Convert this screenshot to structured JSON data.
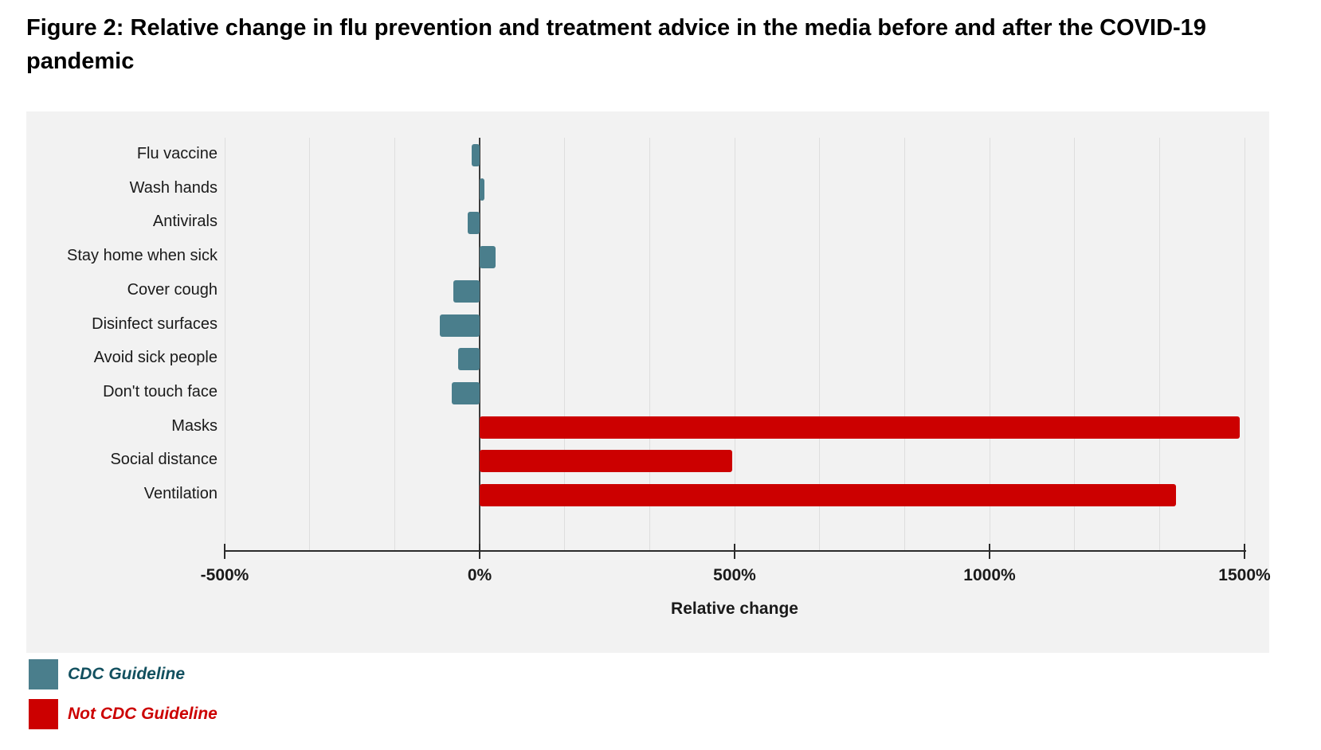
{
  "title": "Figure 2: Relative change in flu prevention and treatment advice in the media before and after the COVID-19 pandemic",
  "colors": {
    "panel_background": "#f2f2f2",
    "gridline": "#dedede",
    "axis": "#2b2b2b",
    "zero_line": "#3d3d3d",
    "cdc_bar": "#4a7e8c",
    "not_cdc_bar": "#cc0000",
    "cdc_legend_text": "#12505f",
    "not_cdc_legend_text": "#cc0000"
  },
  "chart_data": {
    "type": "bar",
    "orientation": "horizontal",
    "title": "Figure 2: Relative change in flu prevention and treatment advice in the media before and after the COVID-19 pandemic",
    "xlabel": "Relative change",
    "ylabel": "",
    "xlim": [
      -500,
      1500
    ],
    "grid": true,
    "gridline_interval_pct": 166.67,
    "x_ticks": [
      {
        "label": "-500%",
        "value": -500
      },
      {
        "label": "0%",
        "value": 0
      },
      {
        "label": "500%",
        "value": 500
      },
      {
        "label": "1000%",
        "value": 1000
      },
      {
        "label": "1500%",
        "value": 1500
      }
    ],
    "categories": [
      "Flu vaccine",
      "Wash hands",
      "Antivirals",
      "Stay home when sick",
      "Cover cough",
      "Disinfect surfaces",
      "Avoid sick people",
      "Don't touch face",
      "Masks",
      "Social distance",
      "Ventilation"
    ],
    "values": [
      -15,
      9,
      -23,
      32,
      -52,
      -78,
      -42,
      -55,
      1490,
      495,
      1365
    ],
    "groups": [
      "CDC Guideline",
      "CDC Guideline",
      "CDC Guideline",
      "CDC Guideline",
      "CDC Guideline",
      "CDC Guideline",
      "CDC Guideline",
      "CDC Guideline",
      "Not CDC Guideline",
      "Not CDC Guideline",
      "Not CDC Guideline"
    ],
    "legend": [
      {
        "label": "CDC Guideline",
        "swatch_color": "#4a7e8c",
        "text_color": "#12505f"
      },
      {
        "label": "Not CDC Guideline",
        "swatch_color": "#cc0000",
        "text_color": "#cc0000"
      }
    ],
    "legend_position": "bottom-left"
  }
}
